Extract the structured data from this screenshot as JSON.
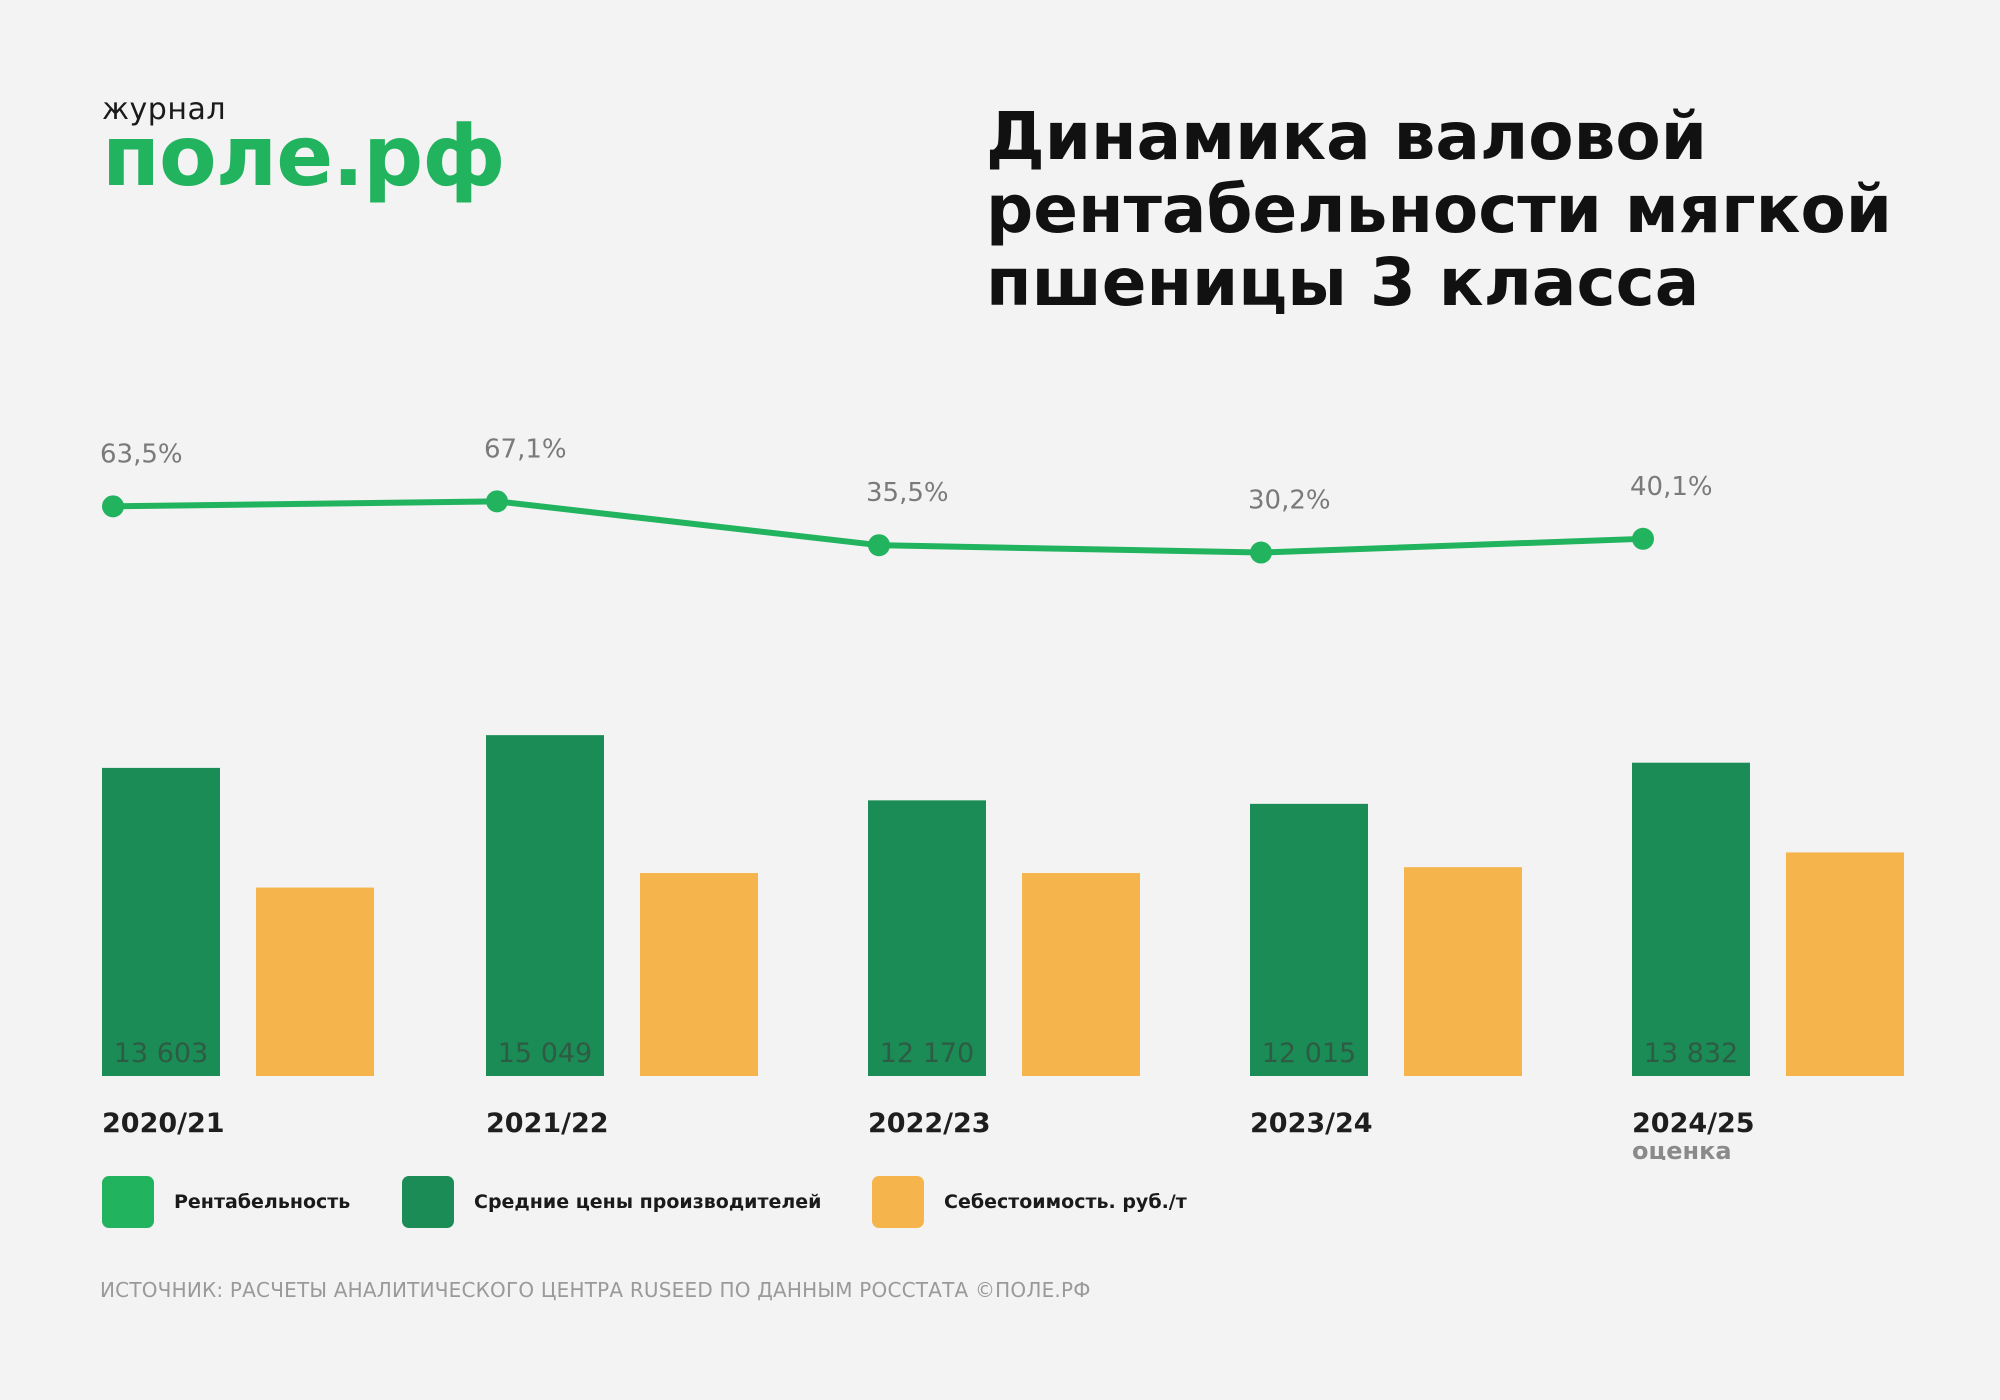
{
  "logo": {
    "small": "журнал",
    "main": "поле.рф"
  },
  "title_lines": [
    "Динамика валовой",
    "рентабельности мягкой",
    "пшеницы 3 класса"
  ],
  "chart_data": {
    "type": "bar",
    "categories": [
      "2020/21",
      "2021/22",
      "2022/23",
      "2023/24",
      "2024/25"
    ],
    "category_sublabels": [
      "",
      "",
      "",
      "",
      "оценка"
    ],
    "series": [
      {
        "name": "Рентабельность",
        "kind": "line",
        "color": "#22b35e",
        "values": [
          63.5,
          67.1,
          35.5,
          30.2,
          40.1
        ],
        "labels": [
          "63,5%",
          "67,1%",
          "35,5%",
          "30,2%",
          "40,1%"
        ]
      },
      {
        "name": "Средние цены производителей",
        "kind": "bar",
        "color": "#1b8c56",
        "values": [
          13603,
          15049,
          12170,
          12015,
          13832
        ],
        "labels": [
          "13 603",
          "15 049",
          "12 170",
          "12 015",
          "13 832"
        ]
      },
      {
        "name": "Себестоимость. руб./т",
        "kind": "bar",
        "color": "#f5b54c",
        "values": [
          8320,
          8960,
          8960,
          9220,
          9870
        ],
        "labels": [
          "",
          "",
          "",
          "",
          ""
        ]
      }
    ],
    "legend_position": "bottom-left",
    "grid": false
  },
  "source": "ИСТОЧНИК: РАСЧЕТЫ АНАЛИТИЧЕСКОГО ЦЕНТРА RUSEED ПО ДАННЫМ РОССТАТА ©ПОЛЕ.РФ"
}
